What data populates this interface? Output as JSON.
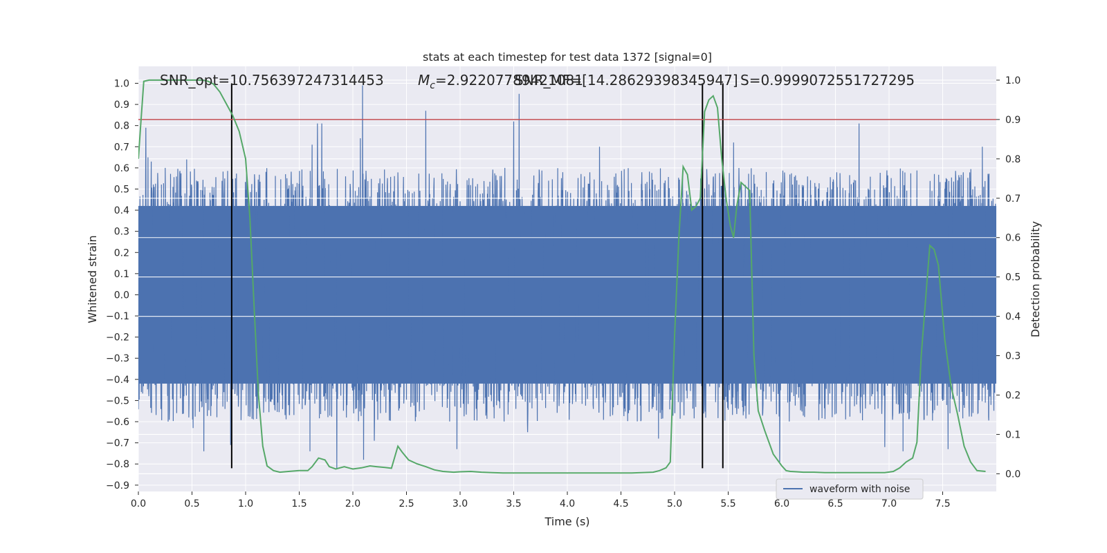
{
  "chart_data": {
    "type": "line",
    "title": "stats at each timestep for test data 1372 [signal=0]",
    "xlabel": "Time (s)",
    "ylabel_left": "Whitened strain",
    "ylabel_right": "Detection probability",
    "xlim": [
      0,
      8
    ],
    "ylim_left": [
      -0.93,
      1.08
    ],
    "ylim_right": [
      -0.045,
      1.035
    ],
    "x_ticks": [
      0.0,
      0.5,
      1.0,
      1.5,
      2.0,
      2.5,
      3.0,
      3.5,
      4.0,
      4.5,
      5.0,
      5.5,
      6.0,
      6.5,
      7.0,
      7.5
    ],
    "y_ticks_left": [
      -0.9,
      -0.8,
      -0.7,
      -0.6,
      -0.5,
      -0.4,
      -0.3,
      -0.2,
      -0.1,
      0.0,
      0.1,
      0.2,
      0.3,
      0.4,
      0.5,
      0.6,
      0.7,
      0.8,
      0.9,
      1.0
    ],
    "y_ticks_right": [
      0.0,
      0.1,
      0.2,
      0.3,
      0.4,
      0.5,
      0.6,
      0.7,
      0.8,
      0.9,
      1.0
    ],
    "annotations": [
      {
        "text": "SNR_opt=10.756397247314453",
        "x": 0.2
      },
      {
        "text": "$M_c$=2.92207789421081",
        "x": 2.6
      },
      {
        "text": "SNR_MF=[14.28629398345947]",
        "x": 3.5
      },
      {
        "text": "S=0.9999072551727295",
        "x": 5.6
      }
    ],
    "annotation_parts": {
      "mc_symbol": "M",
      "mc_sub": "c",
      "mc_value": "=2.92207789421081"
    },
    "threshold": {
      "value": 0.9,
      "axis": "right",
      "color": "#c44e52"
    },
    "vlines": [
      0.87,
      5.26,
      5.45
    ],
    "vline_range_left": [
      -0.82,
      1.0
    ],
    "legend": {
      "label": "waveform with noise",
      "placement": "lower-right"
    },
    "colors": {
      "waveform": "#4c72b0",
      "probability": "#55a868",
      "threshold": "#c44e52",
      "vline": "#000000",
      "background": "#eaeaf2",
      "grid": "#ffffff"
    },
    "waveform": {
      "name": "waveform with noise",
      "samples_per_second": 400,
      "envelope_pos": 0.42,
      "envelope_neg": -0.42,
      "peaks": [
        {
          "x": 0.07,
          "y": 0.79
        },
        {
          "x": 0.09,
          "y": 0.65
        },
        {
          "x": 0.12,
          "y": 0.63
        },
        {
          "x": 0.25,
          "y": 0.6
        },
        {
          "x": 0.45,
          "y": 0.64
        },
        {
          "x": 0.86,
          "y": 0.63
        },
        {
          "x": 1.62,
          "y": 0.71
        },
        {
          "x": 1.67,
          "y": 0.81
        },
        {
          "x": 1.71,
          "y": 0.81
        },
        {
          "x": 2.07,
          "y": 0.74
        },
        {
          "x": 2.09,
          "y": 0.99
        },
        {
          "x": 2.68,
          "y": 0.87
        },
        {
          "x": 3.5,
          "y": 0.82
        },
        {
          "x": 3.55,
          "y": 0.95
        },
        {
          "x": 4.3,
          "y": 0.7
        },
        {
          "x": 5.55,
          "y": 0.72
        },
        {
          "x": 6.72,
          "y": 0.81
        },
        {
          "x": 7.87,
          "y": 0.7
        },
        {
          "x": 0.51,
          "y": -0.63
        },
        {
          "x": 0.61,
          "y": -0.74
        },
        {
          "x": 0.86,
          "y": -0.71
        },
        {
          "x": 1.6,
          "y": -0.74
        },
        {
          "x": 1.85,
          "y": -0.82
        },
        {
          "x": 2.1,
          "y": -0.78
        },
        {
          "x": 2.2,
          "y": -0.69
        },
        {
          "x": 2.97,
          "y": -0.73
        },
        {
          "x": 3.63,
          "y": -0.65
        },
        {
          "x": 5.98,
          "y": -0.79
        },
        {
          "x": 6.96,
          "y": -0.72
        },
        {
          "x": 7.13,
          "y": -0.74
        },
        {
          "x": 7.55,
          "y": -0.73
        },
        {
          "x": 4.85,
          "y": -0.68
        }
      ]
    },
    "probability": {
      "name": "detection probability",
      "x": [
        0.0,
        0.02,
        0.05,
        0.1,
        0.2,
        0.3,
        0.4,
        0.5,
        0.6,
        0.65,
        0.7,
        0.76,
        0.82,
        0.88,
        0.94,
        1.0,
        1.04,
        1.08,
        1.12,
        1.16,
        1.2,
        1.26,
        1.32,
        1.4,
        1.5,
        1.58,
        1.62,
        1.68,
        1.74,
        1.78,
        1.84,
        1.92,
        2.0,
        2.08,
        2.16,
        2.22,
        2.3,
        2.36,
        2.42,
        2.46,
        2.52,
        2.6,
        2.68,
        2.76,
        2.84,
        2.94,
        3.0,
        3.1,
        3.2,
        3.3,
        3.4,
        3.5,
        3.7,
        4.0,
        4.2,
        4.4,
        4.6,
        4.8,
        4.86,
        4.92,
        4.96,
        5.0,
        5.04,
        5.08,
        5.12,
        5.16,
        5.2,
        5.24,
        5.28,
        5.32,
        5.36,
        5.4,
        5.44,
        5.48,
        5.52,
        5.55,
        5.58,
        5.62,
        5.66,
        5.7,
        5.74,
        5.78,
        5.84,
        5.92,
        6.0,
        6.04,
        6.08,
        6.14,
        6.2,
        6.3,
        6.4,
        6.5,
        6.6,
        6.8,
        6.96,
        7.04,
        7.1,
        7.16,
        7.22,
        7.26,
        7.3,
        7.34,
        7.38,
        7.42,
        7.46,
        7.52,
        7.58,
        7.64,
        7.7,
        7.76,
        7.82,
        7.9
      ],
      "y": [
        0.8,
        0.88,
        0.997,
        1.0,
        1.0,
        1.0,
        1.0,
        1.0,
        1.0,
        0.997,
        0.99,
        0.97,
        0.94,
        0.91,
        0.87,
        0.8,
        0.65,
        0.42,
        0.2,
        0.07,
        0.02,
        0.008,
        0.004,
        0.006,
        0.008,
        0.008,
        0.018,
        0.04,
        0.035,
        0.018,
        0.012,
        0.018,
        0.012,
        0.015,
        0.02,
        0.018,
        0.016,
        0.014,
        0.07,
        0.055,
        0.035,
        0.025,
        0.018,
        0.01,
        0.006,
        0.004,
        0.005,
        0.006,
        0.004,
        0.003,
        0.002,
        0.002,
        0.002,
        0.002,
        0.002,
        0.002,
        0.002,
        0.004,
        0.008,
        0.015,
        0.03,
        0.35,
        0.6,
        0.78,
        0.76,
        0.67,
        0.68,
        0.7,
        0.92,
        0.95,
        0.96,
        0.93,
        0.8,
        0.7,
        0.63,
        0.6,
        0.68,
        0.74,
        0.73,
        0.72,
        0.3,
        0.16,
        0.11,
        0.05,
        0.02,
        0.008,
        0.006,
        0.005,
        0.004,
        0.004,
        0.003,
        0.003,
        0.003,
        0.003,
        0.003,
        0.006,
        0.015,
        0.03,
        0.04,
        0.08,
        0.3,
        0.44,
        0.58,
        0.57,
        0.53,
        0.34,
        0.22,
        0.15,
        0.07,
        0.03,
        0.008,
        0.006
      ]
    }
  }
}
